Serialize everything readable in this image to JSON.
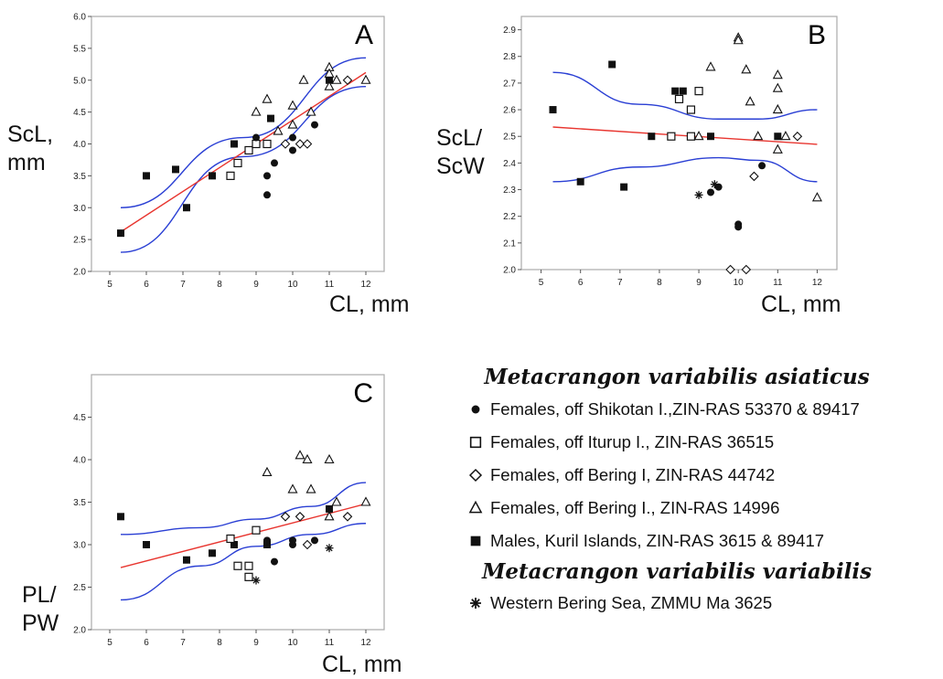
{
  "colors": {
    "fit_line": "#e8352f",
    "confidence_band": "#2a3fd4",
    "points": "#111111",
    "frame": "#aaaaaa"
  },
  "axis_labels": {
    "a_y": "ScL,\nmm",
    "a_x": "CL, mm",
    "b_y": "ScL/\nScW",
    "b_x": "CL, mm",
    "c_y": "PL/\nPW",
    "c_x": "CL, mm"
  },
  "legend": {
    "title_1": "Metacrangon variabilis asiaticus",
    "title_2": "Metacrangon variabilis variabilis",
    "entries": [
      {
        "icon": "filled-circle-icon",
        "label": "Females, off Shikotan I.,ZIN-RAS 53370 & 89417"
      },
      {
        "icon": "open-square-icon",
        "label": "Females, off Iturup I., ZIN-RAS 36515"
      },
      {
        "icon": "open-diamond-icon",
        "label": "Females, off Bering I, ZIN-RAS 44742"
      },
      {
        "icon": "open-triangle-icon",
        "label": "Females, off Bering I., ZIN-RAS 14996"
      },
      {
        "icon": "filled-square-icon",
        "label": "Males, Kuril Islands, ZIN-RAS 3615 & 89417"
      },
      {
        "icon": "asterisk-icon",
        "label": "Western Bering Sea, ZMMU Ma 3625"
      }
    ]
  },
  "chart_data": [
    {
      "type": "scatter",
      "panel": "A",
      "xlim": [
        4.5,
        12.5
      ],
      "ylim": [
        2.0,
        6.0
      ],
      "x_ticks": [
        "5",
        "6",
        "7",
        "8",
        "9",
        "10",
        "11",
        "12"
      ],
      "y_ticks": [
        "2.0",
        "2.5",
        "3.0",
        "3.5",
        "4.0",
        "4.5",
        "5.0",
        "5.5",
        "6.0"
      ],
      "fit": [
        [
          5.3,
          2.62
        ],
        [
          12.0,
          5.12
        ]
      ],
      "ci_upper": [
        [
          5.3,
          3.0
        ],
        [
          8.65,
          4.1
        ],
        [
          12.0,
          5.35
        ]
      ],
      "ci_lower": [
        [
          5.3,
          2.3
        ],
        [
          8.65,
          3.8
        ],
        [
          12.0,
          4.9
        ]
      ],
      "points": [
        {
          "m": "fsq",
          "x": 5.3,
          "y": 2.6
        },
        {
          "m": "fsq",
          "x": 6.0,
          "y": 3.5
        },
        {
          "m": "fsq",
          "x": 6.8,
          "y": 3.6
        },
        {
          "m": "fsq",
          "x": 7.1,
          "y": 3.0
        },
        {
          "m": "fsq",
          "x": 7.8,
          "y": 3.5
        },
        {
          "m": "fsq",
          "x": 8.4,
          "y": 4.0
        },
        {
          "m": "fsq",
          "x": 9.4,
          "y": 4.4
        },
        {
          "m": "fsq",
          "x": 11.0,
          "y": 5.0
        },
        {
          "m": "osq",
          "x": 8.3,
          "y": 3.5
        },
        {
          "m": "osq",
          "x": 8.5,
          "y": 3.7
        },
        {
          "m": "osq",
          "x": 8.8,
          "y": 3.9
        },
        {
          "m": "osq",
          "x": 9.0,
          "y": 4.0
        },
        {
          "m": "osq",
          "x": 9.3,
          "y": 4.0
        },
        {
          "m": "fci",
          "x": 9.0,
          "y": 4.1
        },
        {
          "m": "fci",
          "x": 9.3,
          "y": 3.5
        },
        {
          "m": "fci",
          "x": 9.3,
          "y": 3.2
        },
        {
          "m": "fci",
          "x": 9.5,
          "y": 3.7
        },
        {
          "m": "fci",
          "x": 10.0,
          "y": 4.1
        },
        {
          "m": "fci",
          "x": 10.0,
          "y": 3.9
        },
        {
          "m": "fci",
          "x": 10.6,
          "y": 4.3
        },
        {
          "m": "odi",
          "x": 9.8,
          "y": 4.0
        },
        {
          "m": "odi",
          "x": 10.2,
          "y": 4.0
        },
        {
          "m": "odi",
          "x": 10.4,
          "y": 4.0
        },
        {
          "m": "odi",
          "x": 11.5,
          "y": 5.0
        },
        {
          "m": "otr",
          "x": 9.0,
          "y": 4.5
        },
        {
          "m": "otr",
          "x": 9.3,
          "y": 4.7
        },
        {
          "m": "otr",
          "x": 9.6,
          "y": 4.2
        },
        {
          "m": "otr",
          "x": 10.0,
          "y": 4.6
        },
        {
          "m": "otr",
          "x": 10.0,
          "y": 4.3
        },
        {
          "m": "otr",
          "x": 10.3,
          "y": 5.0
        },
        {
          "m": "otr",
          "x": 10.5,
          "y": 4.5
        },
        {
          "m": "otr",
          "x": 11.0,
          "y": 5.2
        },
        {
          "m": "otr",
          "x": 11.0,
          "y": 5.1
        },
        {
          "m": "otr",
          "x": 11.0,
          "y": 4.9
        },
        {
          "m": "otr",
          "x": 11.2,
          "y": 5.0
        },
        {
          "m": "otr",
          "x": 12.0,
          "y": 5.0
        }
      ]
    },
    {
      "type": "scatter",
      "panel": "B",
      "xlim": [
        4.5,
        12.5
      ],
      "ylim": [
        2.0,
        2.95
      ],
      "x_ticks": [
        "5",
        "6",
        "7",
        "8",
        "9",
        "10",
        "11",
        "12"
      ],
      "y_ticks": [
        "2.0",
        "2.1",
        "2.2",
        "2.3",
        "2.4",
        "2.5",
        "2.6",
        "2.7",
        "2.8",
        "2.9"
      ],
      "fit": [
        [
          5.3,
          2.535
        ],
        [
          12.0,
          2.47
        ]
      ],
      "ci_upper": [
        [
          5.3,
          2.74
        ],
        [
          7.5,
          2.62
        ],
        [
          9.5,
          2.565
        ],
        [
          10.5,
          2.565
        ],
        [
          12.0,
          2.6
        ]
      ],
      "ci_lower": [
        [
          5.3,
          2.33
        ],
        [
          7.5,
          2.385
        ],
        [
          9.5,
          2.42
        ],
        [
          10.5,
          2.41
        ],
        [
          12.0,
          2.33
        ]
      ],
      "points": [
        {
          "m": "fsq",
          "x": 5.3,
          "y": 2.6
        },
        {
          "m": "fsq",
          "x": 6.0,
          "y": 2.33
        },
        {
          "m": "fsq",
          "x": 6.8,
          "y": 2.77
        },
        {
          "m": "fsq",
          "x": 7.1,
          "y": 2.31
        },
        {
          "m": "fsq",
          "x": 7.8,
          "y": 2.5
        },
        {
          "m": "fsq",
          "x": 8.4,
          "y": 2.67
        },
        {
          "m": "fsq",
          "x": 8.6,
          "y": 2.67
        },
        {
          "m": "fsq",
          "x": 9.3,
          "y": 2.5
        },
        {
          "m": "fsq",
          "x": 11.0,
          "y": 2.5
        },
        {
          "m": "osq",
          "x": 8.3,
          "y": 2.5
        },
        {
          "m": "osq",
          "x": 8.5,
          "y": 2.64
        },
        {
          "m": "osq",
          "x": 8.8,
          "y": 2.6
        },
        {
          "m": "osq",
          "x": 9.0,
          "y": 2.67
        },
        {
          "m": "osq",
          "x": 8.8,
          "y": 2.5
        },
        {
          "m": "fci",
          "x": 9.3,
          "y": 2.29
        },
        {
          "m": "fci",
          "x": 9.5,
          "y": 2.31
        },
        {
          "m": "fci",
          "x": 10.0,
          "y": 2.17
        },
        {
          "m": "fci",
          "x": 10.0,
          "y": 2.16
        },
        {
          "m": "fci",
          "x": 10.6,
          "y": 2.39
        },
        {
          "m": "odi",
          "x": 9.8,
          "y": 2.0
        },
        {
          "m": "odi",
          "x": 10.2,
          "y": 2.0
        },
        {
          "m": "odi",
          "x": 10.4,
          "y": 2.35
        },
        {
          "m": "odi",
          "x": 11.5,
          "y": 2.5
        },
        {
          "m": "otr",
          "x": 9.0,
          "y": 2.5
        },
        {
          "m": "otr",
          "x": 9.3,
          "y": 2.76
        },
        {
          "m": "otr",
          "x": 10.0,
          "y": 2.87
        },
        {
          "m": "otr",
          "x": 10.0,
          "y": 2.86
        },
        {
          "m": "otr",
          "x": 10.2,
          "y": 2.75
        },
        {
          "m": "otr",
          "x": 10.3,
          "y": 2.63
        },
        {
          "m": "otr",
          "x": 10.5,
          "y": 2.5
        },
        {
          "m": "otr",
          "x": 11.0,
          "y": 2.73
        },
        {
          "m": "otr",
          "x": 11.0,
          "y": 2.68
        },
        {
          "m": "otr",
          "x": 11.0,
          "y": 2.6
        },
        {
          "m": "otr",
          "x": 11.0,
          "y": 2.45
        },
        {
          "m": "otr",
          "x": 11.2,
          "y": 2.5
        },
        {
          "m": "otr",
          "x": 12.0,
          "y": 2.27
        },
        {
          "m": "ast",
          "x": 9.0,
          "y": 2.28
        },
        {
          "m": "ast",
          "x": 9.4,
          "y": 2.32
        }
      ]
    },
    {
      "type": "scatter",
      "panel": "C",
      "xlim": [
        4.5,
        12.5
      ],
      "ylim": [
        2.0,
        5.0
      ],
      "x_ticks": [
        "5",
        "6",
        "7",
        "8",
        "9",
        "10",
        "11",
        "12"
      ],
      "y_ticks": [
        "2.0",
        "2.5",
        "3.0",
        "3.5",
        "4.0",
        "4.5"
      ],
      "fit": [
        [
          5.3,
          2.73
        ],
        [
          12.0,
          3.48
        ]
      ],
      "ci_upper": [
        [
          5.3,
          3.12
        ],
        [
          7.5,
          3.2
        ],
        [
          9.0,
          3.3
        ],
        [
          10.5,
          3.45
        ],
        [
          12.0,
          3.73
        ]
      ],
      "ci_lower": [
        [
          5.3,
          2.35
        ],
        [
          7.5,
          2.75
        ],
        [
          9.0,
          2.98
        ],
        [
          10.5,
          3.12
        ],
        [
          12.0,
          3.25
        ]
      ],
      "points": [
        {
          "m": "fsq",
          "x": 5.3,
          "y": 3.33
        },
        {
          "m": "fsq",
          "x": 6.0,
          "y": 3.0
        },
        {
          "m": "fsq",
          "x": 7.1,
          "y": 2.82
        },
        {
          "m": "fsq",
          "x": 7.8,
          "y": 2.9
        },
        {
          "m": "fsq",
          "x": 8.4,
          "y": 3.0
        },
        {
          "m": "fsq",
          "x": 9.3,
          "y": 3.0
        },
        {
          "m": "fsq",
          "x": 11.0,
          "y": 3.42
        },
        {
          "m": "osq",
          "x": 8.3,
          "y": 3.07
        },
        {
          "m": "osq",
          "x": 8.5,
          "y": 2.75
        },
        {
          "m": "osq",
          "x": 8.8,
          "y": 2.75
        },
        {
          "m": "osq",
          "x": 8.8,
          "y": 2.62
        },
        {
          "m": "osq",
          "x": 9.0,
          "y": 3.17
        },
        {
          "m": "fci",
          "x": 9.3,
          "y": 3.05
        },
        {
          "m": "fci",
          "x": 9.5,
          "y": 2.8
        },
        {
          "m": "fci",
          "x": 10.0,
          "y": 3.05
        },
        {
          "m": "fci",
          "x": 10.0,
          "y": 3.0
        },
        {
          "m": "fci",
          "x": 10.6,
          "y": 3.05
        },
        {
          "m": "odi",
          "x": 9.8,
          "y": 3.33
        },
        {
          "m": "odi",
          "x": 10.2,
          "y": 3.33
        },
        {
          "m": "odi",
          "x": 10.4,
          "y": 3.0
        },
        {
          "m": "odi",
          "x": 11.5,
          "y": 3.33
        },
        {
          "m": "otr",
          "x": 9.3,
          "y": 3.85
        },
        {
          "m": "otr",
          "x": 10.0,
          "y": 3.65
        },
        {
          "m": "otr",
          "x": 10.2,
          "y": 4.05
        },
        {
          "m": "otr",
          "x": 10.4,
          "y": 4.0
        },
        {
          "m": "otr",
          "x": 10.5,
          "y": 3.65
        },
        {
          "m": "otr",
          "x": 11.0,
          "y": 4.0
        },
        {
          "m": "otr",
          "x": 11.0,
          "y": 3.33
        },
        {
          "m": "otr",
          "x": 11.2,
          "y": 3.5
        },
        {
          "m": "otr",
          "x": 12.0,
          "y": 3.5
        },
        {
          "m": "ast",
          "x": 9.0,
          "y": 2.58
        },
        {
          "m": "ast",
          "x": 11.0,
          "y": 2.96
        }
      ]
    }
  ]
}
